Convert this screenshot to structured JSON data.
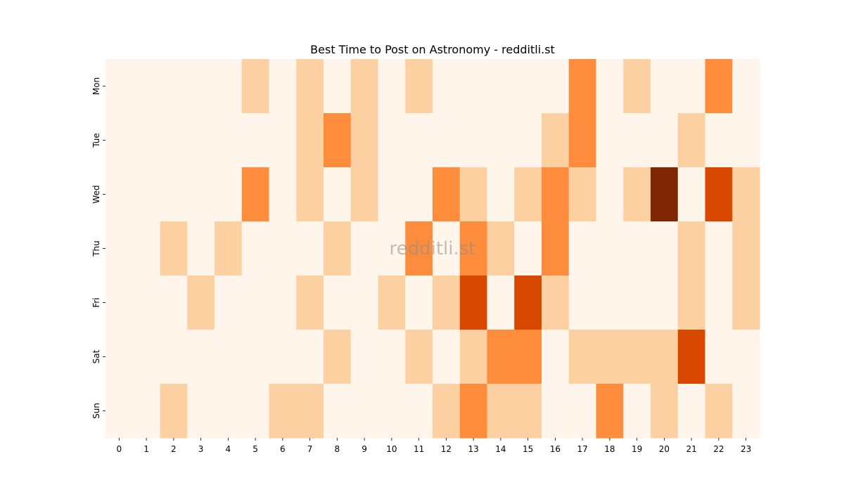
{
  "chart_data": {
    "type": "heatmap",
    "title": "Best Time to Post on Astronomy - redditli.st",
    "watermark": "redditli.st",
    "xlabel": "",
    "ylabel": "",
    "x_categories": [
      "0",
      "1",
      "2",
      "3",
      "4",
      "5",
      "6",
      "7",
      "8",
      "9",
      "10",
      "11",
      "12",
      "13",
      "14",
      "15",
      "16",
      "17",
      "18",
      "19",
      "20",
      "21",
      "22",
      "23"
    ],
    "y_categories": [
      "Mon",
      "Tue",
      "Wed",
      "Thu",
      "Fri",
      "Sat",
      "Sun"
    ],
    "values": [
      [
        0,
        0,
        0,
        0,
        0,
        1,
        0,
        1,
        0,
        1,
        0,
        1,
        0,
        0,
        0,
        0,
        0,
        3,
        0,
        1,
        0,
        0,
        3,
        0
      ],
      [
        0,
        0,
        0,
        0,
        0,
        0,
        0,
        1,
        3,
        1,
        0,
        0,
        0,
        0,
        0,
        0,
        1,
        3,
        0,
        0,
        0,
        1,
        0,
        0
      ],
      [
        0,
        0,
        0,
        0,
        0,
        3,
        0,
        1,
        0,
        1,
        0,
        0,
        3,
        1,
        0,
        1,
        3,
        1,
        0,
        1,
        6,
        0,
        5,
        1
      ],
      [
        0,
        0,
        1,
        0,
        1,
        0,
        0,
        0,
        1,
        0,
        0,
        3,
        0,
        3,
        1,
        0,
        3,
        0,
        0,
        0,
        0,
        1,
        0,
        1
      ],
      [
        0,
        0,
        0,
        1,
        0,
        0,
        0,
        1,
        0,
        0,
        1,
        0,
        1,
        5,
        0,
        5,
        1,
        0,
        0,
        0,
        0,
        1,
        0,
        1
      ],
      [
        0,
        0,
        0,
        0,
        0,
        0,
        0,
        0,
        1,
        0,
        0,
        1,
        0,
        1,
        3,
        3,
        0,
        1,
        1,
        1,
        1,
        5,
        0,
        0
      ],
      [
        0,
        0,
        1,
        0,
        0,
        0,
        1,
        1,
        0,
        0,
        0,
        0,
        1,
        3,
        1,
        1,
        0,
        0,
        3,
        0,
        1,
        0,
        1,
        0
      ]
    ],
    "colormap": {
      "0": "#fff5eb",
      "1": "#fdd0a2",
      "3": "#fd8d3c",
      "5": "#d94801",
      "6": "#7f2704"
    },
    "grid": false,
    "legend": "none"
  }
}
